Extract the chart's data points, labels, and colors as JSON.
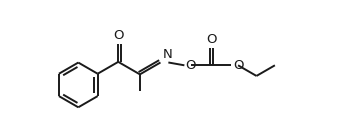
{
  "bg_color": "#ffffff",
  "line_color": "#1a1a1a",
  "line_width": 1.4,
  "font_size": 9.5,
  "figsize": [
    3.54,
    1.33
  ],
  "dpi": 100,
  "xlim": [
    0,
    10.5
  ],
  "ylim": [
    -1.8,
    3.2
  ]
}
